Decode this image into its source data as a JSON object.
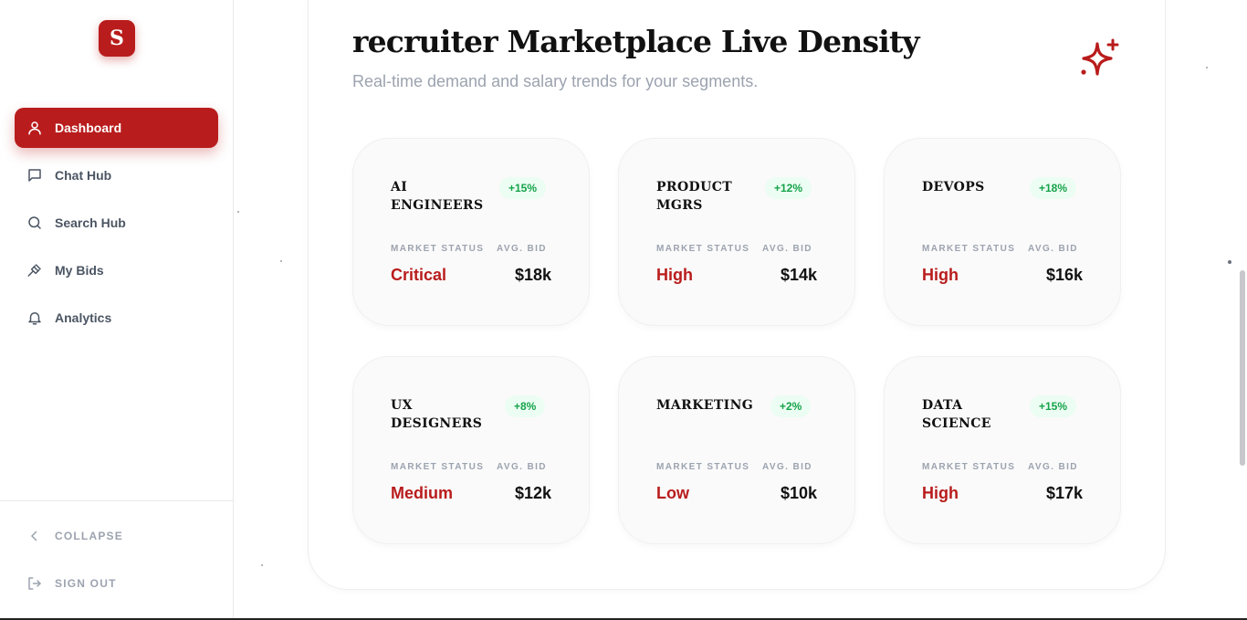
{
  "brand": {
    "logo_letter": "S",
    "accent_color": "#b91c1c"
  },
  "sidebar": {
    "items": [
      {
        "label": "Dashboard",
        "icon": "user-icon",
        "active": true
      },
      {
        "label": "Chat Hub",
        "icon": "chat-icon",
        "active": false
      },
      {
        "label": "Search Hub",
        "icon": "search-icon",
        "active": false
      },
      {
        "label": "My Bids",
        "icon": "gavel-icon",
        "active": false
      },
      {
        "label": "Analytics",
        "icon": "bell-icon",
        "active": false
      }
    ],
    "collapse_label": "COLLAPSE",
    "signout_label": "SIGN OUT"
  },
  "main": {
    "title": "recruiter Marketplace Live Density",
    "subtitle": "Real-time demand and salary trends for your segments.",
    "header_icon": "sparkle-icon",
    "status_label": "MARKET STATUS",
    "bid_label": "AVG. BID",
    "tiles": [
      {
        "name": "AI ENGINEERS",
        "change": "+15%",
        "status": "Critical",
        "bid": "$18k"
      },
      {
        "name": "PRODUCT MGRS",
        "change": "+12%",
        "status": "High",
        "bid": "$14k"
      },
      {
        "name": "DEVOPS",
        "change": "+18%",
        "status": "High",
        "bid": "$16k"
      },
      {
        "name": "UX DESIGNERS",
        "change": "+8%",
        "status": "Medium",
        "bid": "$12k"
      },
      {
        "name": "MARKETING",
        "change": "+2%",
        "status": "Low",
        "bid": "$10k"
      },
      {
        "name": "DATA SCIENCE",
        "change": "+15%",
        "status": "High",
        "bid": "$17k"
      }
    ]
  }
}
